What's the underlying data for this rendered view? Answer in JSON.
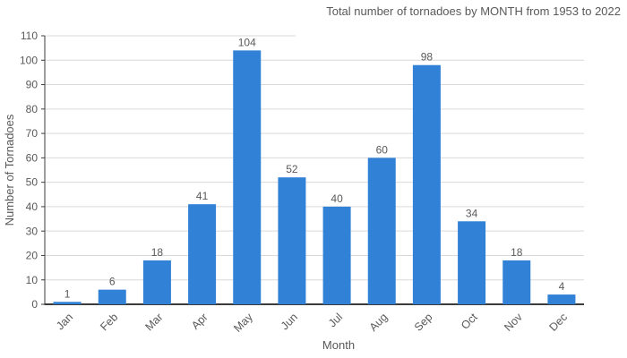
{
  "chart_data": {
    "type": "bar",
    "title": "Total number of tornadoes by MONTH from 1953 to 2022",
    "xlabel": "Month",
    "ylabel": "Number of Tornadoes",
    "categories": [
      "Jan",
      "Feb",
      "Mar",
      "Apr",
      "May",
      "Jun",
      "Jul",
      "Aug",
      "Sep",
      "Oct",
      "Nov",
      "Dec"
    ],
    "values": [
      1,
      6,
      18,
      41,
      104,
      52,
      40,
      60,
      98,
      34,
      18,
      4
    ],
    "ylim": [
      0,
      110
    ],
    "ytick_step": 10,
    "grid": true,
    "legend": "none",
    "bar_color": "#3182d6",
    "text_color": "#595959",
    "grid_color": "#d9d9d9",
    "axis_color": "#3c3c3c"
  }
}
